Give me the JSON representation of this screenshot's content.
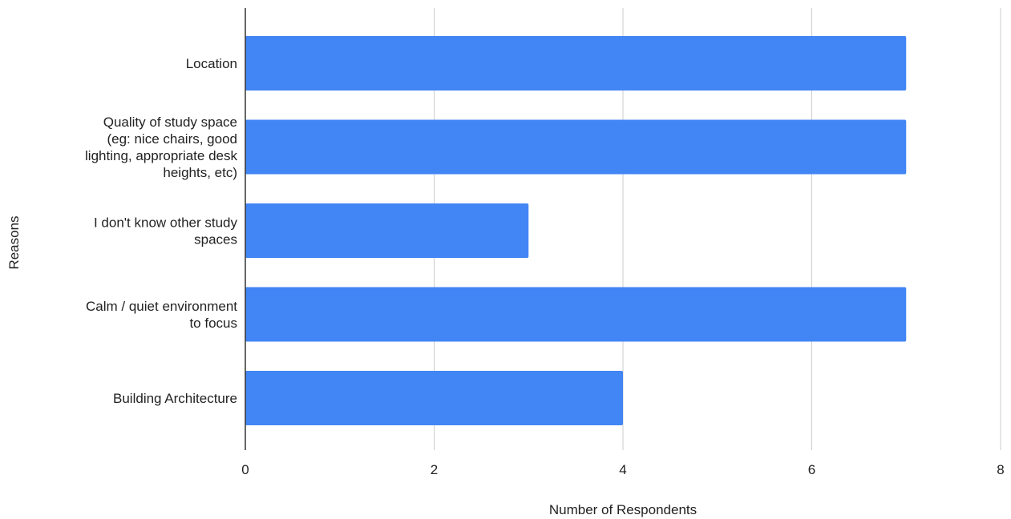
{
  "chart_data": {
    "type": "bar",
    "orientation": "horizontal",
    "title": "",
    "xlabel": "Number of Respondents",
    "ylabel": "Reasons",
    "categories": [
      [
        "Location"
      ],
      [
        "Quality of study space",
        "(eg: nice chairs, good",
        "lighting, appropriate desk",
        "heights, etc)"
      ],
      [
        "I don't know other study",
        "spaces"
      ],
      [
        "Calm / quiet environment",
        "to focus"
      ],
      [
        "Building Architecture"
      ]
    ],
    "series": [
      {
        "values": [
          7,
          7,
          3,
          7,
          4
        ]
      }
    ],
    "xlim": [
      0,
      8
    ],
    "xticks": [
      "0",
      "2",
      "4",
      "6",
      "8"
    ],
    "grid": true,
    "legend": "none",
    "colors": {
      "bar": "#4285F4",
      "grid": "#cccccc",
      "axis": "#333333"
    }
  }
}
